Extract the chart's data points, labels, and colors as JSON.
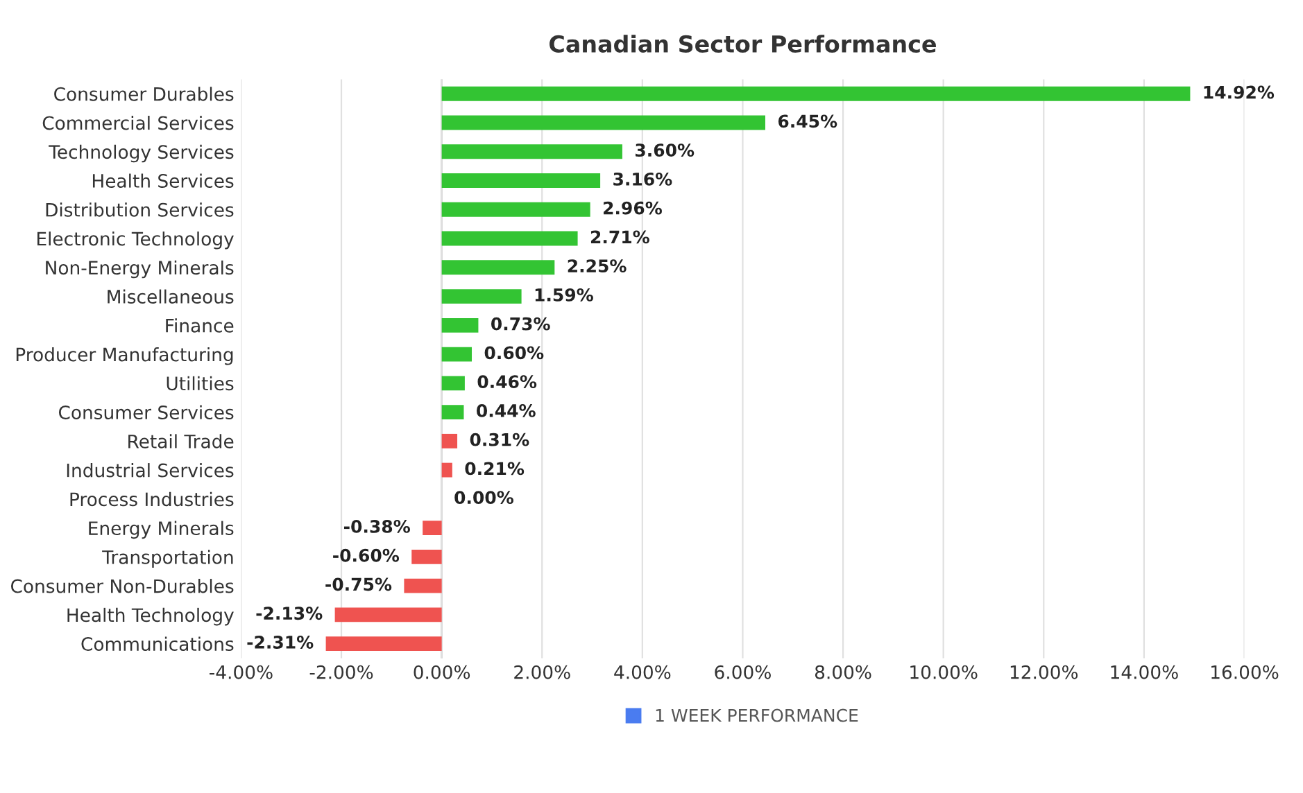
{
  "chart_data": {
    "type": "bar",
    "orientation": "horizontal",
    "title": "Canadian Sector Performance",
    "categories": [
      "Consumer Durables",
      "Commercial Services",
      "Technology Services",
      "Health Services",
      "Distribution Services",
      "Electronic Technology",
      "Non-Energy Minerals",
      "Miscellaneous",
      "Finance",
      "Producer Manufacturing",
      "Utilities",
      "Consumer Services",
      "Retail Trade",
      "Industrial Services",
      "Process Industries",
      "Energy Minerals",
      "Transportation",
      "Consumer Non-Durables",
      "Health Technology",
      "Communications"
    ],
    "series": [
      {
        "name": "1 WEEK PERFORMANCE",
        "color": "#4a7cf0",
        "values": [
          14.92,
          6.45,
          3.6,
          3.16,
          2.96,
          2.71,
          2.25,
          1.59,
          0.73,
          0.6,
          0.46,
          0.44,
          0.31,
          0.21,
          0.0,
          -0.38,
          -0.6,
          -0.75,
          -2.13,
          -2.31
        ],
        "colors": [
          "#33c433",
          "#33c433",
          "#33c433",
          "#33c433",
          "#33c433",
          "#33c433",
          "#33c433",
          "#33c433",
          "#33c433",
          "#33c433",
          "#33c433",
          "#33c433",
          "#ef5350",
          "#ef5350",
          "#33c433",
          "#ef5350",
          "#ef5350",
          "#ef5350",
          "#ef5350",
          "#ef5350"
        ],
        "value_labels": [
          "14.92%",
          "6.45%",
          "3.60%",
          "3.16%",
          "2.96%",
          "2.71%",
          "2.25%",
          "1.59%",
          "0.73%",
          "0.60%",
          "0.46%",
          "0.44%",
          "0.31%",
          "0.21%",
          "0.00%",
          "-0.38%",
          "-0.60%",
          "-0.75%",
          "-2.13%",
          "-2.31%"
        ]
      }
    ],
    "xlim": [
      -4,
      16
    ],
    "xticks": [
      {
        "value": -4,
        "label": "-4.00%"
      },
      {
        "value": -2,
        "label": "-2.00%"
      },
      {
        "value": 0,
        "label": "0.00%"
      },
      {
        "value": 2,
        "label": "2.00%"
      },
      {
        "value": 4,
        "label": "4.00%"
      },
      {
        "value": 6,
        "label": "6.00%"
      },
      {
        "value": 8,
        "label": "8.00%"
      },
      {
        "value": 10,
        "label": "10.00%"
      },
      {
        "value": 12,
        "label": "12.00%"
      },
      {
        "value": 14,
        "label": "14.00%"
      },
      {
        "value": 16,
        "label": "16.00%"
      }
    ],
    "grid": "x",
    "legend": "bottom"
  }
}
